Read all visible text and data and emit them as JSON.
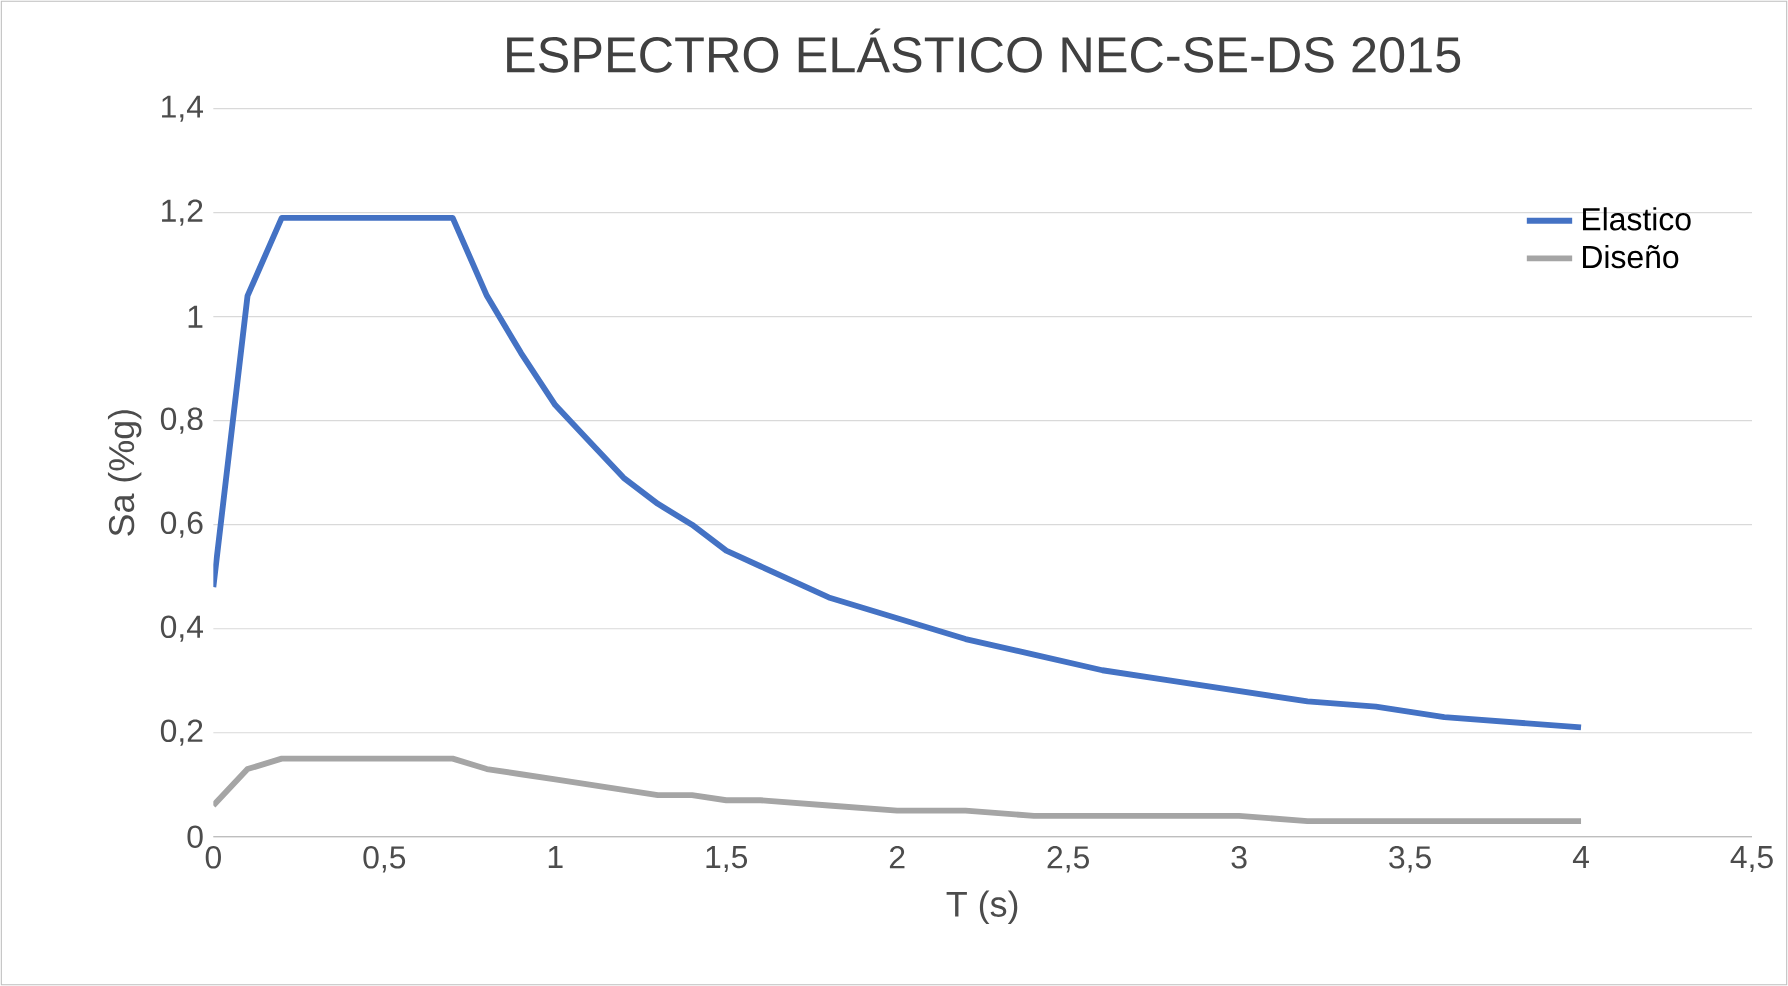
{
  "chart_data": {
    "type": "line",
    "title": "ESPECTRO ELÁSTICO NEC-SE-DS 2015",
    "xlabel": "T (s)",
    "ylabel": "Sa (%g)",
    "x": [
      0,
      0.1,
      0.2,
      0.3,
      0.4,
      0.5,
      0.6,
      0.7,
      0.8,
      0.9,
      1.0,
      1.1,
      1.2,
      1.3,
      1.4,
      1.5,
      1.6,
      1.8,
      2.0,
      2.2,
      2.4,
      2.6,
      2.8,
      3.0,
      3.2,
      3.4,
      3.6,
      3.8,
      4.0
    ],
    "series": [
      {
        "name": "Elastico",
        "color": "#4472c4",
        "values": [
          0.48,
          1.04,
          1.19,
          1.19,
          1.19,
          1.19,
          1.19,
          1.19,
          1.04,
          0.93,
          0.83,
          0.76,
          0.69,
          0.64,
          0.6,
          0.55,
          0.52,
          0.46,
          0.42,
          0.38,
          0.35,
          0.32,
          0.3,
          0.28,
          0.26,
          0.25,
          0.23,
          0.22,
          0.21
        ]
      },
      {
        "name": "Diseño",
        "color": "#a5a5a5",
        "values": [
          0.06,
          0.13,
          0.15,
          0.15,
          0.15,
          0.15,
          0.15,
          0.15,
          0.13,
          0.12,
          0.11,
          0.1,
          0.09,
          0.08,
          0.08,
          0.07,
          0.07,
          0.06,
          0.05,
          0.05,
          0.04,
          0.04,
          0.04,
          0.04,
          0.03,
          0.03,
          0.03,
          0.03,
          0.03
        ]
      }
    ],
    "xlim": [
      0,
      4.5
    ],
    "xticks": [
      0,
      {
        "value": 0.5,
        "label": "0,5"
      },
      1,
      {
        "value": 1.5,
        "label": "1,5"
      },
      2,
      {
        "value": 2.5,
        "label": "2,5"
      },
      3,
      {
        "value": 3.5,
        "label": "3,5"
      },
      4,
      {
        "value": 4.5,
        "label": "4,5"
      }
    ],
    "ylim": [
      0,
      1.4
    ],
    "yticks": [
      0,
      {
        "value": 0.2,
        "label": "0,2"
      },
      {
        "value": 0.4,
        "label": "0,4"
      },
      {
        "value": 0.6,
        "label": "0,6"
      },
      {
        "value": 0.8,
        "label": "0,8"
      },
      1,
      {
        "value": 1.2,
        "label": "1,2"
      },
      {
        "value": 1.4,
        "label": "1,4"
      }
    ],
    "grid": "y",
    "legend": "right",
    "marker": "none",
    "line_style": "solid"
  }
}
